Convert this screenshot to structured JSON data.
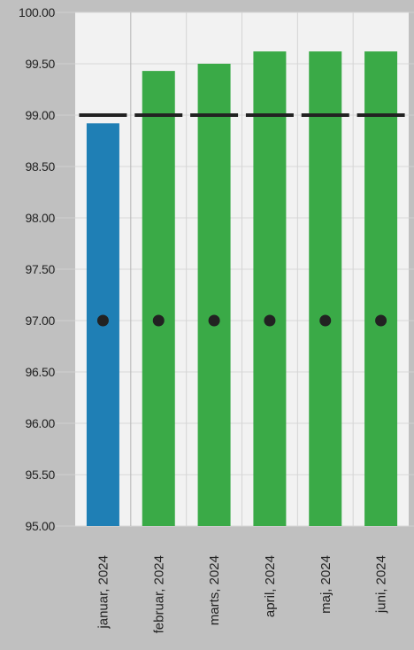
{
  "chart_data": {
    "type": "bar",
    "categories": [
      "januar, 2024",
      "februar, 2024",
      "marts, 2024",
      "april, 2024",
      "maj, 2024",
      "juni, 2024"
    ],
    "series": [
      {
        "values": [
          98.92,
          99.43,
          99.5,
          99.62,
          99.62,
          99.62
        ],
        "colors": [
          "#1f7fb5",
          "#3aaa47",
          "#3aaa47",
          "#3aaa47",
          "#3aaa47",
          "#3aaa47"
        ]
      }
    ],
    "target": [
      99.0,
      99.0,
      99.0,
      99.0,
      99.0,
      99.0
    ],
    "markers": [
      97.0,
      97.0,
      97.0,
      97.0,
      97.0,
      97.0
    ],
    "ylim": [
      95.0,
      100.0
    ],
    "yticks": [
      "95.00",
      "95.50",
      "96.00",
      "96.50",
      "97.00",
      "97.50",
      "98.00",
      "98.50",
      "99.00",
      "99.50",
      "100.00"
    ],
    "title": "",
    "xlabel": "",
    "ylabel": "",
    "grid": true,
    "legend": "none",
    "colors": {
      "page_background": "#c0c0c0",
      "plot_background": "#f2f2f2",
      "target_line": "#222222",
      "marker": "#222222"
    }
  }
}
